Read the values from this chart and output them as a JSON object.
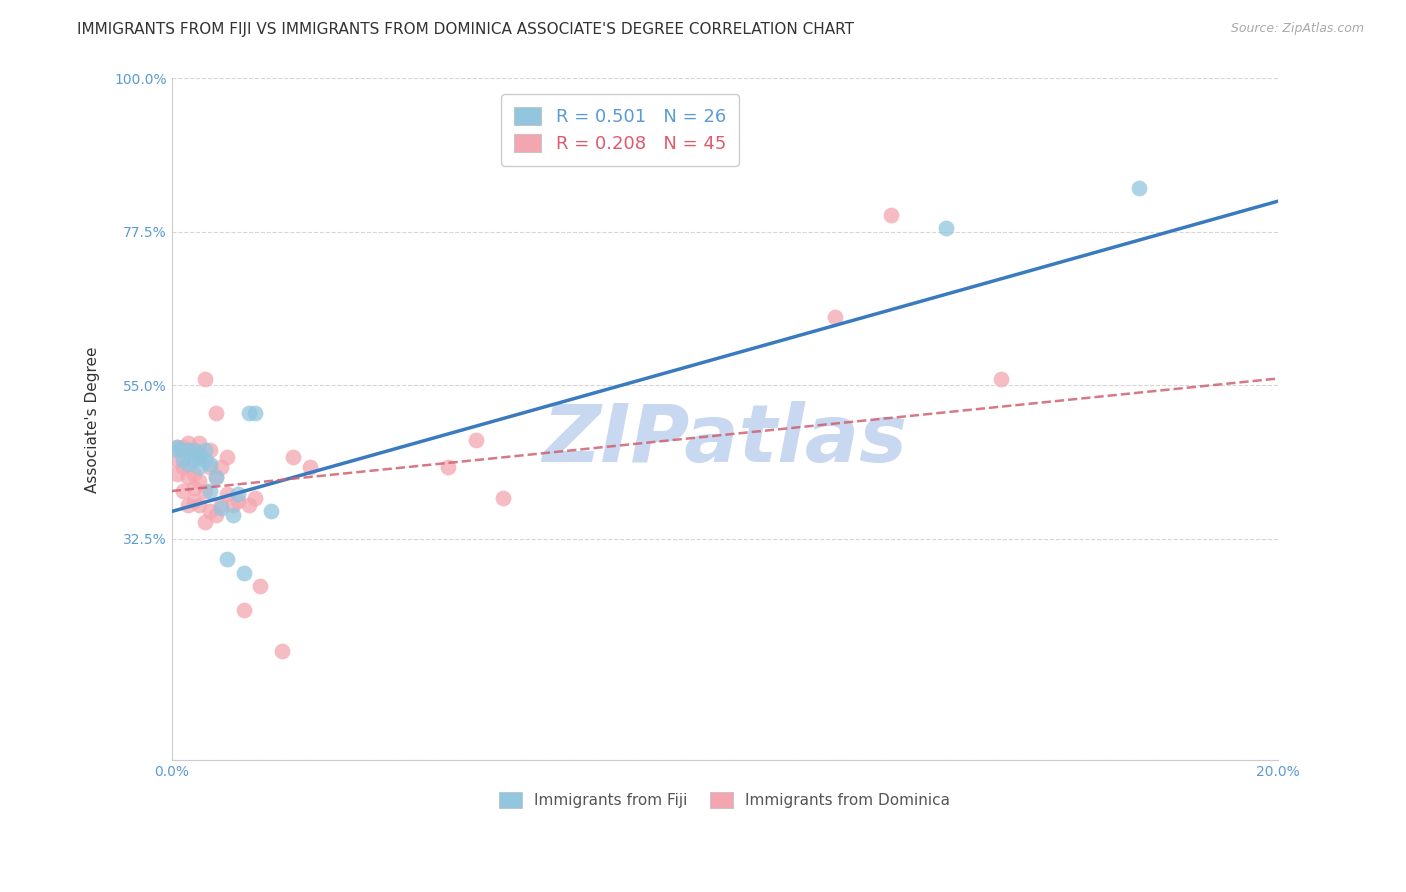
{
  "title": "IMMIGRANTS FROM FIJI VS IMMIGRANTS FROM DOMINICA ASSOCIATE'S DEGREE CORRELATION CHART",
  "source": "Source: ZipAtlas.com",
  "ylabel": "Associate's Degree",
  "xlim": [
    0.0,
    0.2
  ],
  "ylim": [
    0.0,
    1.0
  ],
  "yticks": [
    0.0,
    0.325,
    0.55,
    0.775,
    1.0
  ],
  "ytick_labels": [
    "",
    "32.5%",
    "55.0%",
    "77.5%",
    "100.0%"
  ],
  "xticks": [
    0.0,
    0.05,
    0.1,
    0.15,
    0.2
  ],
  "xtick_labels": [
    "0.0%",
    "",
    "",
    "",
    "20.0%"
  ],
  "fiji_R": 0.501,
  "fiji_N": 26,
  "dominica_R": 0.208,
  "dominica_N": 45,
  "fiji_color": "#92c5de",
  "dominica_color": "#f4a6b0",
  "fiji_line_color": "#3a7bbf",
  "dominica_line_color": "#d06070",
  "background_color": "#ffffff",
  "grid_color": "#cccccc",
  "watermark": "ZIPatlas",
  "watermark_color": "#c8d8f0",
  "fiji_x": [
    0.001,
    0.001,
    0.002,
    0.002,
    0.003,
    0.003,
    0.004,
    0.004,
    0.005,
    0.005,
    0.005,
    0.006,
    0.006,
    0.007,
    0.007,
    0.008,
    0.009,
    0.01,
    0.011,
    0.012,
    0.013,
    0.014,
    0.015,
    0.018,
    0.14,
    0.175
  ],
  "fiji_y": [
    0.455,
    0.46,
    0.44,
    0.455,
    0.435,
    0.455,
    0.44,
    0.455,
    0.445,
    0.45,
    0.43,
    0.455,
    0.44,
    0.395,
    0.435,
    0.415,
    0.37,
    0.295,
    0.36,
    0.39,
    0.275,
    0.51,
    0.51,
    0.365,
    0.78,
    0.84
  ],
  "dominica_x": [
    0.001,
    0.001,
    0.001,
    0.002,
    0.002,
    0.002,
    0.003,
    0.003,
    0.003,
    0.004,
    0.004,
    0.004,
    0.004,
    0.005,
    0.005,
    0.005,
    0.005,
    0.006,
    0.006,
    0.006,
    0.007,
    0.007,
    0.007,
    0.008,
    0.008,
    0.008,
    0.009,
    0.009,
    0.01,
    0.01,
    0.011,
    0.012,
    0.013,
    0.014,
    0.015,
    0.016,
    0.02,
    0.022,
    0.025,
    0.05,
    0.055,
    0.06,
    0.12,
    0.13,
    0.15
  ],
  "dominica_y": [
    0.42,
    0.44,
    0.46,
    0.395,
    0.43,
    0.46,
    0.375,
    0.415,
    0.465,
    0.38,
    0.42,
    0.455,
    0.4,
    0.375,
    0.41,
    0.45,
    0.465,
    0.35,
    0.395,
    0.56,
    0.365,
    0.43,
    0.455,
    0.36,
    0.415,
    0.51,
    0.375,
    0.43,
    0.39,
    0.445,
    0.375,
    0.38,
    0.22,
    0.375,
    0.385,
    0.255,
    0.16,
    0.445,
    0.43,
    0.43,
    0.47,
    0.385,
    0.65,
    0.8,
    0.56
  ],
  "fiji_line_x0": 0.0,
  "fiji_line_y0": 0.365,
  "fiji_line_x1": 0.2,
  "fiji_line_y1": 0.82,
  "dominica_line_x0": 0.0,
  "dominica_line_y0": 0.395,
  "dominica_line_x1": 0.2,
  "dominica_line_y1": 0.56,
  "title_fontsize": 11,
  "axis_label_fontsize": 11,
  "tick_fontsize": 10,
  "legend_fontsize": 13,
  "source_fontsize": 9
}
